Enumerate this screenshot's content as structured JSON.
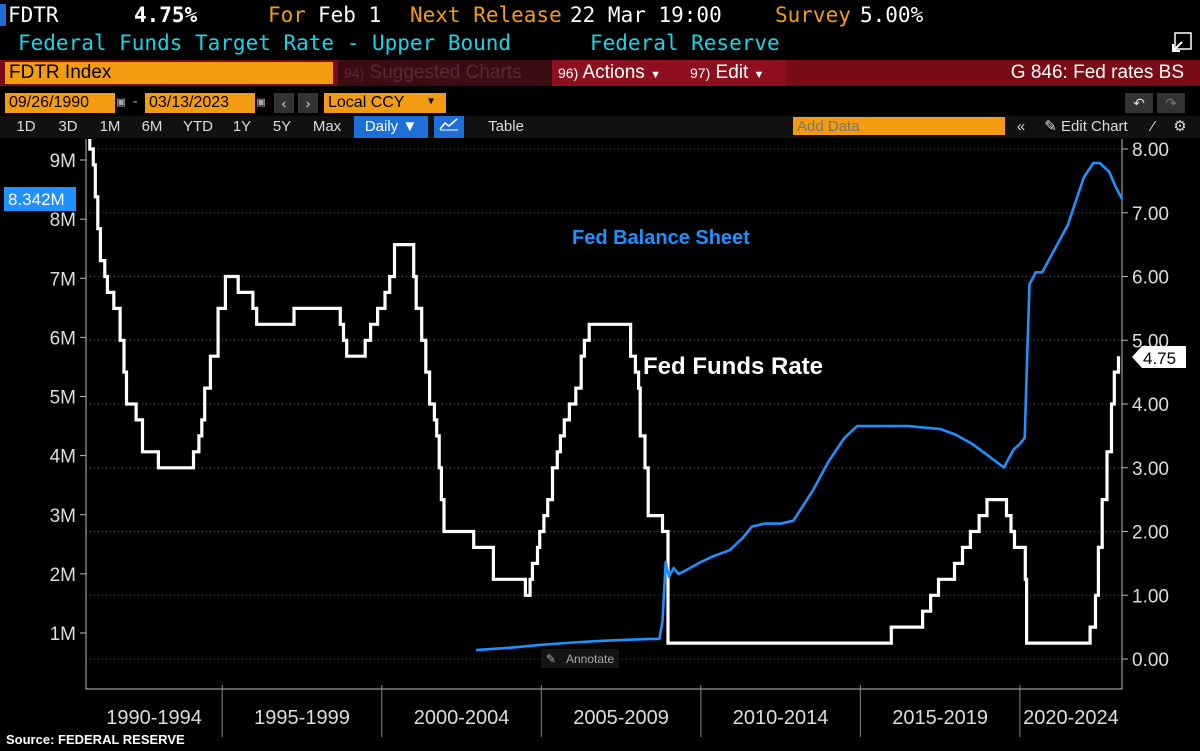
{
  "header": {
    "ticker": "FDTR",
    "value": "4.75%",
    "for_label": "For",
    "for_date": "Feb 1",
    "next_release_label": "Next Release",
    "next_release_value": "22 Mar 19:00",
    "survey_label": "Survey",
    "survey_value": "5.00%",
    "description": "Federal Funds Target Rate - Upper Bound",
    "source": "Federal Reserve"
  },
  "toolbar": {
    "security": "FDTR Index",
    "suggested_num": "94)",
    "suggested": "Suggested Charts",
    "actions_num": "96)",
    "actions": "Actions",
    "edit_num": "97)",
    "edit": "Edit",
    "chart_name": "G 846: Fed rates BS"
  },
  "controls": {
    "start_date": "09/26/1990",
    "end_date": "03/13/2023",
    "currency": "Local CCY",
    "periods": [
      "1D",
      "3D",
      "1M",
      "6M",
      "YTD",
      "1Y",
      "5Y",
      "Max"
    ],
    "frequency": "Daily ▼",
    "table": "Table",
    "add_data_placeholder": "Add Data",
    "edit_chart": "Edit Chart",
    "annotate": "Annotate"
  },
  "footer": {
    "source": "Source: FEDERAL RESERVE"
  },
  "colors": {
    "orange": "#f39c12",
    "cyan": "#19d3e6",
    "rate_line": "#ffffff",
    "bs_line": "#1e90ff",
    "toolbar_red": "#7a0c17"
  },
  "chart_data": {
    "type": "line",
    "x_range": [
      1990.73,
      2023.2
    ],
    "x_tick_labels": [
      "1990-1994",
      "1995-1999",
      "2000-2004",
      "2005-2009",
      "2010-2014",
      "2015-2019",
      "2020-2024"
    ],
    "left_axis": {
      "ticks": [
        "1M",
        "2M",
        "3M",
        "4M",
        "5M",
        "6M",
        "7M",
        "8M",
        "9M"
      ],
      "range_millions": [
        0.55,
        9.4
      ],
      "last_value_label": "8.342M"
    },
    "right_axis": {
      "ticks": [
        "0.00",
        "1.00",
        "2.00",
        "3.00",
        "4.00",
        "5.00",
        "6.00",
        "7.00",
        "8.00"
      ],
      "range": [
        -0.1,
        8.2
      ],
      "last_value_label": "4.75"
    },
    "annotations": [
      "Fed Balance Sheet",
      "Fed Funds Rate"
    ],
    "series": [
      {
        "name": "Fed Funds Rate",
        "axis": "right",
        "x": [
          1990.73,
          1990.85,
          1990.96,
          1991.02,
          1991.1,
          1991.18,
          1991.32,
          1991.4,
          1991.6,
          1991.8,
          1991.92,
          1992.0,
          1992.3,
          1992.5,
          1993.0,
          1994.0,
          1994.1,
          1994.27,
          1994.36,
          1994.45,
          1994.63,
          1994.87,
          1995.1,
          1995.5,
          1995.96,
          1996.08,
          1997.25,
          1998.7,
          1998.8,
          1998.9,
          1999.48,
          1999.65,
          1999.87,
          2000.1,
          2000.25,
          2000.4,
          2001.0,
          2001.08,
          2001.25,
          2001.38,
          2001.5,
          2001.65,
          2001.72,
          2001.8,
          2001.87,
          2001.95,
          2002.88,
          2003.5,
          2004.5,
          2004.65,
          2004.72,
          2004.88,
          2004.95,
          2005.08,
          2005.2,
          2005.35,
          2005.5,
          2005.6,
          2005.72,
          2005.88,
          2006.08,
          2006.25,
          2006.35,
          2006.5,
          2007.7,
          2007.8,
          2007.95,
          2008.05,
          2008.1,
          2008.25,
          2008.35,
          2008.8,
          2008.97,
          2015.97,
          2016.95,
          2017.2,
          2017.45,
          2017.95,
          2018.2,
          2018.45,
          2018.72,
          2018.97,
          2019.58,
          2019.72,
          2019.83,
          2020.17,
          2020.21,
          2022.2,
          2022.37,
          2022.46,
          2022.58,
          2022.73,
          2022.87,
          2022.96,
          2023.09
        ],
        "values": [
          8.25,
          8.0,
          7.75,
          7.25,
          6.75,
          6.25,
          6.0,
          5.75,
          5.5,
          5.0,
          4.5,
          4.0,
          3.75,
          3.25,
          3.0,
          3.0,
          3.25,
          3.5,
          3.75,
          4.25,
          4.75,
          5.5,
          6.0,
          5.75,
          5.5,
          5.25,
          5.5,
          5.25,
          5.0,
          4.75,
          5.0,
          5.25,
          5.5,
          5.75,
          6.0,
          6.5,
          6.0,
          5.5,
          5.0,
          4.5,
          4.0,
          3.75,
          3.5,
          3.0,
          2.5,
          2.0,
          1.75,
          1.25,
          1.0,
          1.25,
          1.5,
          1.75,
          2.0,
          2.25,
          2.5,
          3.0,
          3.25,
          3.5,
          3.75,
          4.0,
          4.25,
          4.75,
          5.0,
          5.25,
          5.25,
          4.75,
          4.5,
          4.25,
          3.5,
          3.0,
          2.25,
          2.0,
          0.25,
          0.5,
          0.75,
          1.0,
          1.25,
          1.5,
          1.75,
          2.0,
          2.25,
          2.5,
          2.25,
          2.0,
          1.75,
          1.25,
          0.25,
          0.5,
          1.0,
          1.75,
          2.5,
          3.25,
          4.0,
          4.5,
          4.75
        ]
      },
      {
        "name": "Fed Balance Sheet",
        "axis": "left",
        "x": [
          2002.95,
          2004.0,
          2005.0,
          2006.0,
          2007.0,
          2007.5,
          2008.4,
          2008.7,
          2008.8,
          2008.9,
          2009.0,
          2009.15,
          2009.3,
          2009.5,
          2010.0,
          2010.4,
          2010.9,
          2011.3,
          2011.6,
          2012.0,
          2012.5,
          2012.9,
          2013.5,
          2014.0,
          2014.5,
          2014.9,
          2015.5,
          2016.5,
          2017.5,
          2018.0,
          2018.5,
          2019.0,
          2019.5,
          2019.6,
          2019.8,
          2020.0,
          2020.15,
          2020.2,
          2020.3,
          2020.5,
          2020.7,
          2021.0,
          2021.5,
          2022.0,
          2022.3,
          2022.5,
          2022.8,
          2023.0,
          2023.2
        ],
        "values": [
          0.71,
          0.75,
          0.8,
          0.84,
          0.87,
          0.88,
          0.9,
          0.9,
          1.2,
          2.2,
          1.95,
          2.1,
          2.0,
          2.05,
          2.2,
          2.3,
          2.4,
          2.6,
          2.8,
          2.85,
          2.85,
          2.9,
          3.4,
          3.9,
          4.3,
          4.5,
          4.5,
          4.5,
          4.45,
          4.35,
          4.2,
          4.0,
          3.8,
          3.9,
          4.1,
          4.2,
          4.3,
          5.2,
          6.9,
          7.1,
          7.1,
          7.4,
          7.9,
          8.7,
          8.95,
          8.95,
          8.8,
          8.55,
          8.34
        ]
      }
    ]
  }
}
